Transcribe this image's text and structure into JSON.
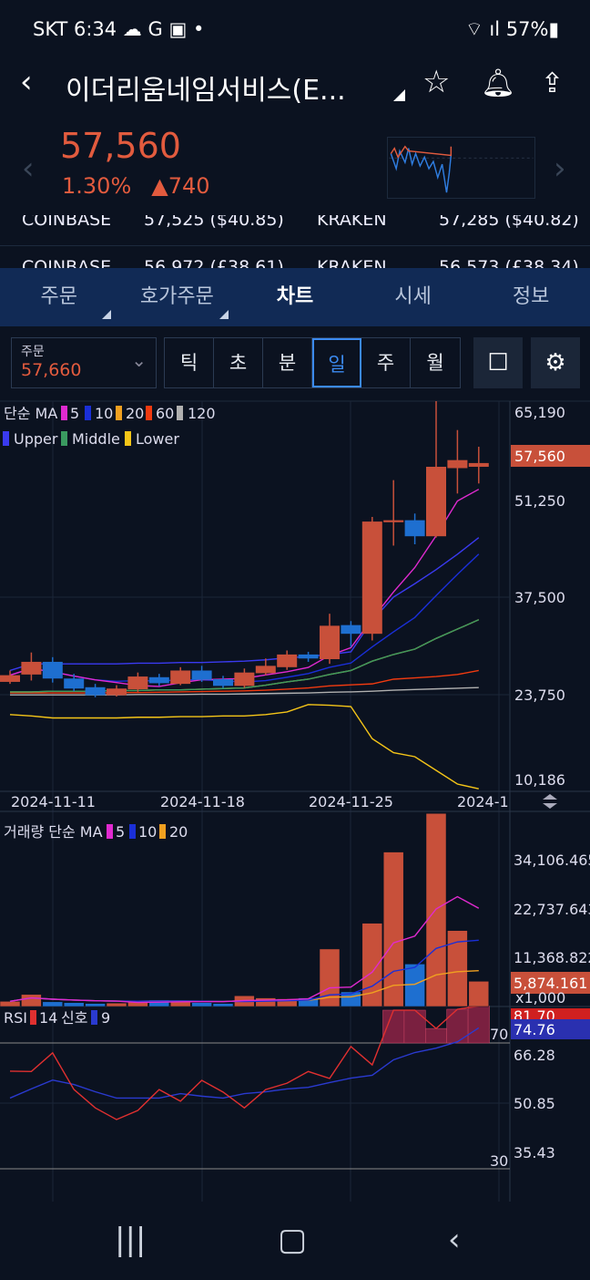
{
  "status": {
    "carrier": "SKT",
    "time": "6:34",
    "battery": "57%"
  },
  "header": {
    "title": "이더리움네임서비스(E...",
    "back_icon": "chevron-left",
    "star_icon": "star",
    "bell_icon": "bell",
    "share_icon": "share"
  },
  "quote": {
    "price": "57,560",
    "change_pct": "1.30%",
    "change": "▲740"
  },
  "exchanges": [
    {
      "ex1": "COINBASE",
      "v1": "57,525 ($40.85)",
      "ex2": "KRAKEN",
      "v2": "57,285 ($40.82)"
    },
    {
      "ex1": "COINBASE",
      "v1": "56,972 (£38.61)",
      "ex2": "KRAKEN",
      "v2": "56,573 (£38.34)"
    }
  ],
  "tabs": [
    {
      "label": "주문",
      "menu": true
    },
    {
      "label": "호가주문",
      "menu": true
    },
    {
      "label": "차트",
      "active": true
    },
    {
      "label": "시세"
    },
    {
      "label": "정보"
    }
  ],
  "toolbar": {
    "order_label": "주문",
    "order_value": "57,660",
    "periods": [
      "틱",
      "초",
      "분",
      "일",
      "주",
      "월"
    ],
    "active_period": "일"
  },
  "colors": {
    "up": "#c8503a",
    "down": "#1e6fd0",
    "ma5": "#e02ad0",
    "ma10": "#1a2fd8",
    "ma20": "#f0a020",
    "ma60": "#f03a10",
    "ma120": "#b0b0b0",
    "upper": "#3a3af0",
    "middle": "#3a9a60",
    "lower": "#f5c518",
    "rsi": "#e03030",
    "signal": "#2a3ad0"
  },
  "chart_data": [
    {
      "type": "candlestick",
      "legend": {
        "title": "단순 MA",
        "items": [
          "5",
          "10",
          "20",
          "60",
          "120"
        ],
        "bb": [
          "Upper",
          "Middle",
          "Lower"
        ]
      },
      "y_ticks": [
        "65,190",
        "51,250",
        "37,500",
        "23,750",
        "10,186"
      ],
      "ylim": [
        10186,
        65190
      ],
      "last_price": "57,560",
      "x_ticks": [
        "2024-11-11",
        "2024-11-18",
        "2024-11-25",
        "2024-1"
      ],
      "ohlc": [
        [
          24800,
          26500,
          24500,
          25800
        ],
        [
          25900,
          29200,
          25000,
          27800
        ],
        [
          27800,
          28500,
          24700,
          25300
        ],
        [
          25300,
          26000,
          23400,
          23800
        ],
        [
          24000,
          24500,
          22500,
          22800
        ],
        [
          22800,
          24300,
          22600,
          23800
        ],
        [
          23700,
          26200,
          23300,
          25600
        ],
        [
          25500,
          26000,
          24200,
          24600
        ],
        [
          24500,
          27000,
          24300,
          26500
        ],
        [
          26500,
          27200,
          24800,
          25100
        ],
        [
          25200,
          25700,
          23900,
          24200
        ],
        [
          24200,
          26800,
          23900,
          26200
        ],
        [
          26100,
          28300,
          25800,
          27200
        ],
        [
          27000,
          29500,
          26600,
          28900
        ],
        [
          28900,
          29300,
          27800,
          28300
        ],
        [
          28200,
          35000,
          27500,
          33200
        ],
        [
          33300,
          33900,
          30000,
          32000
        ],
        [
          32000,
          49500,
          31000,
          48800
        ],
        [
          48700,
          55000,
          45200,
          49000
        ],
        [
          49000,
          50000,
          45400,
          46600
        ],
        [
          46600,
          68500,
          46400,
          57000
        ],
        [
          56800,
          62500,
          53000,
          58000
        ],
        [
          57000,
          60000,
          54500,
          57560
        ]
      ],
      "upper": [
        26500,
        27500,
        27500,
        27500,
        27500,
        27500,
        27600,
        27600,
        27700,
        27700,
        27800,
        27900,
        28100,
        28400,
        28600,
        28900,
        29300,
        34000,
        37500,
        39500,
        41600,
        43900,
        46400
      ],
      "middle": [
        23300,
        23300,
        23400,
        23400,
        23400,
        23500,
        23500,
        23600,
        23600,
        23700,
        23800,
        23900,
        24300,
        24800,
        25200,
        25900,
        26500,
        27900,
        28900,
        29700,
        31300,
        32700,
        34100
      ],
      "lower": [
        19900,
        19700,
        19400,
        19400,
        19400,
        19400,
        19500,
        19500,
        19600,
        19600,
        19700,
        19700,
        19900,
        20300,
        21400,
        21300,
        21100,
        16300,
        14200,
        13600,
        11550,
        9500,
        8800
      ],
      "ma60": [
        23150,
        23150,
        23150,
        23150,
        23150,
        23200,
        23200,
        23250,
        23300,
        23350,
        23400,
        23450,
        23550,
        23700,
        23900,
        24200,
        24350,
        24500,
        25200,
        25400,
        25600,
        25900,
        26500
      ],
      "ma120": [
        22850,
        22850,
        22850,
        22850,
        22850,
        22850,
        22900,
        22900,
        22900,
        22950,
        22950,
        23000,
        23050,
        23100,
        23150,
        23250,
        23300,
        23400,
        23550,
        23650,
        23750,
        23850,
        23950
      ]
    },
    {
      "type": "bar",
      "title": "거래량 단순 MA",
      "legend": [
        "5",
        "10",
        "20"
      ],
      "unit": "x1,000",
      "y_ticks": [
        "34,106.465",
        "22,737.643",
        "11,368.822"
      ],
      "last_value": "5,874.161",
      "values": [
        1200,
        2800,
        1100,
        900,
        700,
        800,
        1200,
        1500,
        1300,
        900,
        700,
        2500,
        2000,
        1800,
        2000,
        13400,
        3400,
        19400,
        36000,
        9900,
        45000,
        17700,
        5874
      ]
    },
    {
      "type": "line",
      "title": "RSI",
      "legend": [
        "14",
        "신호",
        "9"
      ],
      "y_ticks": [
        "66.28",
        "50.85",
        "35.43"
      ],
      "levels": [
        "70",
        "30"
      ],
      "last_rsi": "81.70",
      "last_signal": "74.76",
      "rsi": [
        61.1,
        61,
        66.9,
        55.3,
        49.5,
        45.8,
        48.7,
        55.3,
        51.6,
        58.2,
        54.5,
        49.5,
        55.3,
        57.3,
        61,
        58.8,
        68.9,
        63.1,
        80.4,
        80.4,
        74.6,
        80.7,
        81.7
      ],
      "signal": [
        52.6,
        55.5,
        58.3,
        56.9,
        54.6,
        52.6,
        52.6,
        52.6,
        54,
        53.2,
        52.6,
        54,
        54.6,
        55.5,
        56,
        57.5,
        58.9,
        59.8,
        64.7,
        67,
        68.4,
        70.4,
        74.8
      ]
    }
  ]
}
